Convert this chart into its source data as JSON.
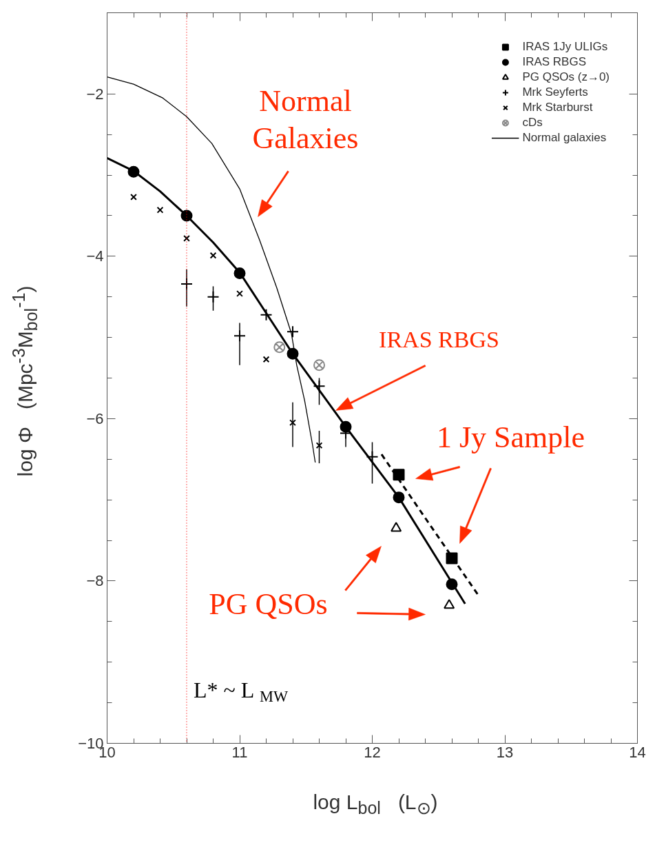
{
  "chart_data": {
    "type": "scatter",
    "xlabel": "log L$_{bol}$   (L$_{⊙}$)",
    "ylabel": "log Φ   (Mpc$^{-3}$M$_{bol}$$^{-1}$)",
    "xlim": [
      10,
      14
    ],
    "ylim": [
      -10,
      -1
    ],
    "xticks": [
      10,
      11,
      12,
      13,
      14
    ],
    "yticks": [
      -10,
      -8,
      -6,
      -4,
      -2
    ],
    "grid": false,
    "legend": "top right",
    "series": [
      {
        "name": "IRAS 1Jy ULIGs",
        "marker": "square",
        "color": "#000000",
        "x": [
          12.2,
          12.6
        ],
        "values": [
          -6.69,
          -7.72
        ]
      },
      {
        "name": "IRAS RBGS",
        "marker": "circle",
        "color": "#000000",
        "x": [
          10.2,
          10.6,
          11.0,
          11.4,
          11.8,
          12.2,
          12.6
        ],
        "values": [
          -2.96,
          -3.5,
          -4.21,
          -5.2,
          -6.1,
          -6.97,
          -8.04
        ]
      },
      {
        "name": "PG QSOs (z→0)",
        "marker": "triangle",
        "color": "#000000",
        "x": [
          12.18,
          12.58
        ],
        "values": [
          -7.35,
          -8.3
        ]
      },
      {
        "name": "Mrk Seyferts",
        "marker": "cross",
        "color": "#000000",
        "x": [
          10.6,
          10.8,
          11.0,
          11.2,
          11.4,
          11.6,
          11.8,
          12.0
        ],
        "values": [
          -4.34,
          -4.5,
          -4.98,
          -4.72,
          -4.93,
          -5.6,
          -6.18,
          -6.47
        ],
        "errors": [
          [
            -4.62,
            -4.16
          ],
          [
            -4.67,
            -4.37
          ],
          [
            -5.34,
            -4.82
          ],
          null,
          null,
          [
            -5.83,
            -5.5
          ],
          [
            -6.35,
            -6.05
          ],
          [
            -6.8,
            -6.29
          ]
        ]
      },
      {
        "name": "Mrk Starburst",
        "marker": "x",
        "color": "#000000",
        "x": [
          10.2,
          10.4,
          10.6,
          10.8,
          11.0,
          11.2,
          11.4,
          11.6
        ],
        "values": [
          -3.27,
          -3.43,
          -3.78,
          -3.99,
          -4.46,
          -5.27,
          -6.05,
          -6.33
        ],
        "errors": [
          null,
          null,
          null,
          null,
          null,
          null,
          [
            -6.35,
            -5.8
          ],
          [
            -6.55,
            -6.15
          ]
        ]
      },
      {
        "name": "cDs",
        "color": "#888888",
        "x": [
          11.3,
          11.6
        ],
        "values": [
          -5.12,
          -5.34
        ]
      },
      {
        "name": "Normal galaxies",
        "type": "line",
        "line_style": "solid",
        "color": "#000000",
        "x": [
          10.0,
          10.2,
          10.42,
          10.6,
          10.79,
          11.0,
          11.15,
          11.28,
          11.39,
          11.43,
          11.49,
          11.55,
          11.57
        ],
        "values": [
          -1.79,
          -1.88,
          -2.05,
          -2.28,
          -2.61,
          -3.17,
          -3.8,
          -4.39,
          -4.95,
          -5.34,
          -5.78,
          -6.33,
          -6.54
        ]
      },
      {
        "type": "line",
        "line_style": "solid",
        "color": "#000000",
        "x": [
          10.0,
          10.2,
          10.4,
          10.6,
          10.8,
          11.0,
          11.2,
          11.4,
          11.8,
          12.2,
          12.7
        ],
        "values": [
          -2.79,
          -2.95,
          -3.2,
          -3.5,
          -3.83,
          -4.2,
          -4.7,
          -5.2,
          -6.1,
          -6.97,
          -8.28
        ]
      },
      {
        "type": "line",
        "line_style": "dashed",
        "color": "#000000",
        "x": [
          12.07,
          12.81
        ],
        "values": [
          -6.44,
          -8.2
        ]
      }
    ],
    "ref_lines": [
      {
        "axis": "x",
        "value": 10.6,
        "label": "L* ~ L$_{MW}$",
        "color": "#ff0000",
        "line_style": "dotted"
      }
    ],
    "annotations": [
      "Normal Galaxies",
      "IRAS RBGS",
      "1 Jy Sample",
      "PG QSOs"
    ]
  }
}
